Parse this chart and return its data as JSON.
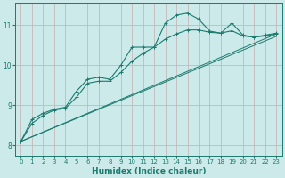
{
  "xlabel": "Humidex (Indice chaleur)",
  "ylabel": "",
  "bg_color": "#cdeaea",
  "grid_color": "#c8b8b8",
  "line_color": "#1a7a6e",
  "xlim": [
    -0.5,
    23.5
  ],
  "ylim": [
    7.75,
    11.55
  ],
  "xticks": [
    0,
    1,
    2,
    3,
    4,
    5,
    6,
    7,
    8,
    9,
    10,
    11,
    12,
    13,
    14,
    15,
    16,
    17,
    18,
    19,
    20,
    21,
    22,
    23
  ],
  "yticks": [
    8,
    9,
    10,
    11
  ],
  "curve1_x": [
    0,
    1,
    2,
    3,
    4,
    5,
    6,
    7,
    8,
    9,
    10,
    11,
    12,
    13,
    14,
    15,
    16,
    17,
    18,
    19,
    20,
    21,
    22,
    23
  ],
  "curve1_y": [
    8.1,
    8.65,
    8.8,
    8.9,
    8.95,
    9.35,
    9.65,
    9.7,
    9.65,
    10.0,
    10.45,
    10.45,
    10.45,
    11.05,
    11.25,
    11.3,
    11.15,
    10.85,
    10.8,
    11.05,
    10.75,
    10.7,
    10.75,
    10.8
  ],
  "curve2_x": [
    0,
    1,
    2,
    3,
    4,
    5,
    6,
    7,
    8,
    9,
    10,
    11,
    12,
    13,
    14,
    15,
    16,
    17,
    18,
    19,
    20,
    21,
    22,
    23
  ],
  "curve2_y": [
    8.1,
    8.55,
    8.75,
    8.88,
    8.92,
    9.2,
    9.55,
    9.6,
    9.6,
    9.82,
    10.1,
    10.3,
    10.45,
    10.65,
    10.78,
    10.88,
    10.88,
    10.82,
    10.8,
    10.86,
    10.73,
    10.7,
    10.73,
    10.78
  ],
  "line3_y_start": 8.1,
  "line3_y_end": 10.78,
  "line4_y_start": 8.1,
  "line4_y_end": 10.72
}
